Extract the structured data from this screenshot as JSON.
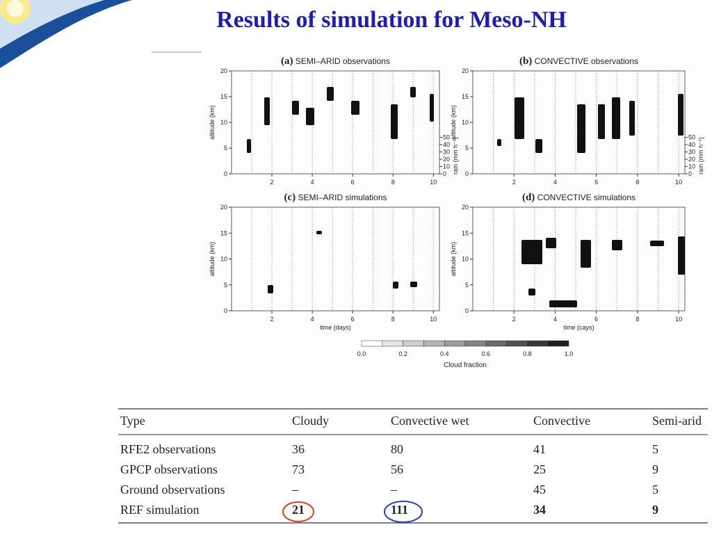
{
  "title": "Results of simulation for Meso-NH",
  "figure": {
    "panels": [
      {
        "label": "(a)",
        "title": "SEMI–ARID observations"
      },
      {
        "label": "(b)",
        "title": "CONVECTIVE observations"
      },
      {
        "label": "(c)",
        "title": "SEMI–ARID simulations"
      },
      {
        "label": "(d)",
        "title": "CONVECTIVE simulations"
      }
    ],
    "y_label": "altitude (km)",
    "y_ticks": [
      "0",
      "5",
      "10",
      "15",
      "20"
    ],
    "x_ticks": [
      "2",
      "4",
      "6",
      "8",
      "10"
    ],
    "x_labels": [
      "time (days)",
      "time (cays)"
    ],
    "rain_label": "rain (mm h⁻¹)",
    "rain_ticks": [
      "0",
      "10",
      "20",
      "30",
      "40",
      "50"
    ],
    "colorbar": {
      "ticks": [
        "0.0",
        "0.2",
        "0.4",
        "0.6",
        "0.8",
        "1.0"
      ],
      "label": "Cloud fraction"
    }
  },
  "table": {
    "header": [
      "Type",
      "Cloudy",
      "Convective wet",
      "Convective",
      "Semi-arid"
    ],
    "rows": [
      [
        "RFE2 observations",
        "36",
        "80",
        "41",
        "5"
      ],
      [
        "GPCP observations",
        "73",
        "56",
        "25",
        "9"
      ],
      [
        "Ground observations",
        "–",
        "–",
        "45",
        "5"
      ],
      [
        "REF simulation",
        "21",
        "111",
        "34",
        "9"
      ]
    ]
  }
}
